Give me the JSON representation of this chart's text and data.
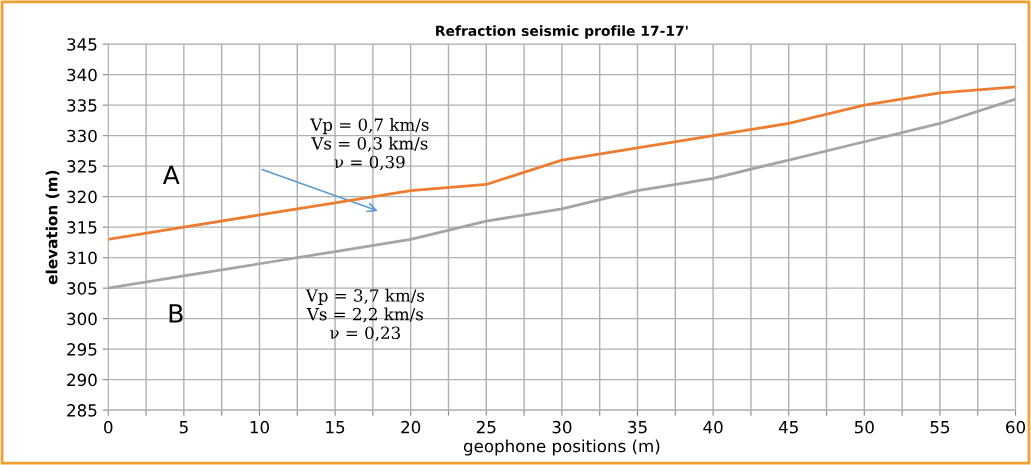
{
  "chart_data": {
    "type": "line",
    "title": "Refraction seismic profile 17-17'",
    "xlabel": "geophone positions (m)",
    "ylabel": "elevation (m)",
    "x": [
      0,
      5,
      10,
      15,
      20,
      25,
      30,
      35,
      40,
      45,
      50,
      55,
      60
    ],
    "series": [
      {
        "color": "#ed7d31",
        "values": [
          313,
          315,
          317,
          319,
          321,
          322,
          326,
          328,
          330,
          332,
          335,
          337,
          338
        ]
      },
      {
        "color": "#a5a5a5",
        "values": [
          305,
          307,
          309,
          311,
          313,
          316,
          318,
          321,
          323,
          326,
          329,
          332,
          336
        ]
      }
    ],
    "xlim": [
      0,
      60
    ],
    "xticks": [
      0,
      {
        "value": 2.5,
        "label": null
      },
      5,
      {
        "value": 7.5,
        "label": null
      },
      10,
      {
        "value": 12.5,
        "label": null
      },
      15,
      {
        "value": 17.5,
        "label": null
      },
      20,
      {
        "value": 22.5,
        "label": null
      },
      25,
      {
        "value": 27.5,
        "label": null
      },
      30,
      {
        "value": 32.5,
        "label": null
      },
      35,
      {
        "value": 37.5,
        "label": null
      },
      40,
      {
        "value": 42.5,
        "label": null
      },
      45,
      {
        "value": 47.5,
        "label": null
      },
      50,
      {
        "value": 52.5,
        "label": null
      },
      55,
      {
        "value": 57.5,
        "label": null
      },
      60
    ],
    "ylim": [
      285,
      345
    ],
    "yticks": [
      285,
      290,
      295,
      300,
      305,
      310,
      315,
      320,
      325,
      330,
      335,
      340,
      345
    ],
    "grid": true,
    "marker": "none",
    "line_style": "solid",
    "legend": false,
    "annotations": [
      "A",
      "Vp = 0,7 km/s\nVs = 0,3 km/s\nν = 0,39",
      "B",
      "Vp = 3,7 km/s\nVs = 2,2 km/s\nν = 0,23"
    ]
  }
}
